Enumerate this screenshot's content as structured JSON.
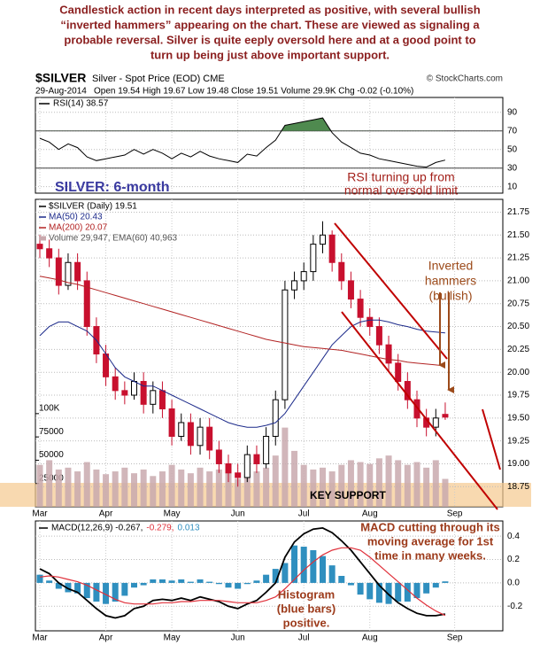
{
  "commentary": [
    "Candlestick action in recent days interpreted as positive, with several bullish",
    "“inverted hammers” appearing on the chart. These are viewed as signaling a",
    "probable reversal. Silver is quite eeply oversold here and at a good point to",
    "turn up being just above important support."
  ],
  "header": {
    "symbol": "$SILVER",
    "description": "Silver - Spot Price (EOD) CME",
    "source": "© StockCharts.com",
    "date": "29-Aug-2014",
    "quote": "Open 19.54 High 19.67 Low 19.48 Close 19.51 Volume 29.9K Chg -0.02 (-0.10%)"
  },
  "chart_data": [
    {
      "type": "line",
      "series": [
        {
          "name": "RSI(14) 38.57",
          "color": "#000000",
          "values": [
            62,
            58,
            50,
            56,
            52,
            42,
            38,
            40,
            42,
            44,
            50,
            45,
            50,
            46,
            40,
            46,
            42,
            48,
            43,
            40,
            38,
            36,
            45,
            43,
            52,
            60,
            76,
            78,
            80,
            82,
            84,
            68,
            58,
            52,
            46,
            44,
            40,
            38,
            36,
            34,
            32,
            31,
            36,
            38.57,
            null
          ]
        }
      ],
      "ylim": [
        3,
        106
      ],
      "yticks": [
        90,
        70,
        50,
        30,
        10
      ],
      "bands": {
        "upper": 70,
        "lower": 30,
        "fill": "#4f8a4f"
      },
      "annotations": [
        {
          "text": [
            "RSI turning up from",
            "normal oversold limit"
          ],
          "color": "#a3201a"
        }
      ]
    },
    {
      "type": "candlestick",
      "title": "SILVER: 6-month",
      "name": "$SILVER (Daily) 19.51",
      "categories": [
        "Mar",
        null,
        null,
        null,
        null,
        null,
        null,
        "Apr",
        null,
        null,
        null,
        null,
        null,
        null,
        "May",
        null,
        null,
        null,
        null,
        null,
        null,
        "Jun",
        null,
        null,
        null,
        null,
        null,
        null,
        "Jul",
        null,
        null,
        null,
        null,
        null,
        null,
        "Aug",
        null,
        null,
        null,
        null,
        null,
        null,
        null,
        null,
        "Sep"
      ],
      "open": [
        21.4,
        21.35,
        21.25,
        20.95,
        21.2,
        21.0,
        20.5,
        20.2,
        19.95,
        19.8,
        19.75,
        19.9,
        19.65,
        19.8,
        19.6,
        19.3,
        19.45,
        19.2,
        19.4,
        19.15,
        19.0,
        18.9,
        18.85,
        19.1,
        19.0,
        19.3,
        19.7,
        20.9,
        21.0,
        21.1,
        21.4,
        21.5,
        21.2,
        21.0,
        20.8,
        20.6,
        20.5,
        20.3,
        20.1,
        19.9,
        19.7,
        19.5,
        19.4,
        19.54,
        null
      ],
      "high": [
        21.5,
        21.45,
        21.35,
        21.3,
        21.3,
        21.1,
        20.6,
        20.3,
        20.05,
        19.9,
        20.0,
        20.0,
        19.9,
        19.9,
        19.7,
        19.55,
        19.55,
        19.5,
        19.5,
        19.25,
        19.1,
        19.0,
        19.2,
        19.2,
        19.4,
        19.8,
        21.0,
        21.1,
        21.2,
        21.5,
        21.65,
        21.55,
        21.3,
        21.1,
        20.9,
        20.7,
        20.6,
        20.4,
        20.2,
        20.0,
        19.8,
        19.6,
        19.6,
        19.67,
        null
      ],
      "low": [
        21.25,
        21.15,
        20.85,
        20.9,
        20.9,
        20.4,
        20.1,
        19.85,
        19.7,
        19.65,
        19.7,
        19.55,
        19.55,
        19.5,
        19.2,
        19.25,
        19.1,
        19.1,
        19.05,
        18.9,
        18.8,
        18.75,
        18.8,
        18.9,
        18.95,
        19.2,
        19.6,
        20.8,
        20.9,
        21.0,
        21.3,
        21.1,
        20.9,
        20.7,
        20.5,
        20.4,
        20.2,
        20.0,
        19.8,
        19.6,
        19.4,
        19.3,
        19.3,
        19.48,
        null
      ],
      "close": [
        21.35,
        21.25,
        20.95,
        21.2,
        21.0,
        20.5,
        20.2,
        19.95,
        19.8,
        19.75,
        19.9,
        19.65,
        19.8,
        19.6,
        19.3,
        19.45,
        19.2,
        19.4,
        19.15,
        19.0,
        18.9,
        18.85,
        19.1,
        19.0,
        19.3,
        19.7,
        20.9,
        21.0,
        21.1,
        21.4,
        21.5,
        21.2,
        21.0,
        20.8,
        20.6,
        20.5,
        20.3,
        20.1,
        19.9,
        19.7,
        19.5,
        19.4,
        19.5,
        19.51,
        null
      ],
      "up_color": "#000000",
      "down_color": "#c8102e",
      "series": [
        {
          "name": "MA(50) 20.43",
          "color": "#1c2a8a",
          "values": [
            20.4,
            20.5,
            20.55,
            20.55,
            20.5,
            20.45,
            20.35,
            20.2,
            20.05,
            19.95,
            19.9,
            19.85,
            19.85,
            19.8,
            19.75,
            19.7,
            19.65,
            19.6,
            19.55,
            19.5,
            19.45,
            19.42,
            19.4,
            19.4,
            19.42,
            19.45,
            19.55,
            19.7,
            19.85,
            20.0,
            20.15,
            20.3,
            20.4,
            20.5,
            20.55,
            20.57,
            20.57,
            20.55,
            20.52,
            20.5,
            20.47,
            20.45,
            20.44,
            20.43,
            null
          ]
        },
        {
          "name": "MA(200) 20.07",
          "color": "#b22222",
          "values": [
            21.05,
            21.03,
            21.01,
            20.98,
            20.96,
            20.93,
            20.9,
            20.87,
            20.84,
            20.81,
            20.78,
            20.75,
            20.72,
            20.69,
            20.66,
            20.63,
            20.6,
            20.57,
            20.54,
            20.51,
            20.48,
            20.45,
            20.42,
            20.39,
            20.36,
            20.34,
            20.32,
            20.3,
            20.28,
            20.27,
            20.26,
            20.25,
            20.24,
            20.22,
            20.2,
            20.18,
            20.16,
            20.14,
            20.13,
            20.11,
            20.1,
            20.09,
            20.08,
            20.07,
            null
          ]
        },
        {
          "name": "Volume 29,947, EMA(60) 40,963",
          "color": "#c9a9ae",
          "axis": "y2",
          "values": [
            45000,
            50000,
            40000,
            42000,
            38000,
            48000,
            40000,
            35000,
            38000,
            42000,
            36000,
            40000,
            33000,
            38000,
            45000,
            40000,
            36000,
            42000,
            38000,
            40000,
            44000,
            30000,
            35000,
            38000,
            42000,
            55000,
            85000,
            60000,
            45000,
            40000,
            42000,
            38000,
            45000,
            50000,
            48000,
            46000,
            52000,
            55000,
            50000,
            45000,
            48000,
            42000,
            50000,
            29947,
            null
          ]
        }
      ],
      "ylim": [
        18.53,
        21.89
      ],
      "yticks": [
        21.75,
        {
          "value": 21.5,
          "label": "21.50"
        },
        21.25,
        {
          "value": 21.0,
          "label": "21.00"
        },
        20.75,
        {
          "value": 20.5,
          "label": "20.50"
        },
        20.25,
        {
          "value": 20.0,
          "label": "20.00"
        },
        19.75,
        {
          "value": 19.5,
          "label": "19.50"
        },
        19.25,
        {
          "value": 19.0,
          "label": "19.00"
        },
        18.75
      ],
      "y2lim": [
        0,
        330000
      ],
      "y2ticks": [
        25000,
        50000,
        75000,
        {
          "value": 100000,
          "label": "100K"
        }
      ],
      "annotations": [
        {
          "text": [
            "Inverted",
            "hammers",
            "(bullish)"
          ],
          "color": "#9c4a1a"
        },
        {
          "text": [
            "KEY SUPPORT"
          ],
          "color": "#000000"
        }
      ]
    },
    {
      "type": "macd",
      "series": [
        {
          "name": "MACD(12,26,9) -0.267,",
          "color": "#000000",
          "values": [
            0.12,
            0.08,
            0.0,
            -0.05,
            -0.08,
            -0.15,
            -0.22,
            -0.28,
            -0.3,
            -0.28,
            -0.22,
            -0.2,
            -0.15,
            -0.14,
            -0.15,
            -0.13,
            -0.15,
            -0.12,
            -0.14,
            -0.16,
            -0.2,
            -0.22,
            -0.18,
            -0.15,
            -0.08,
            0.0,
            0.22,
            0.35,
            0.42,
            0.46,
            0.47,
            0.43,
            0.36,
            0.28,
            0.18,
            0.08,
            -0.02,
            -0.1,
            -0.17,
            -0.22,
            -0.26,
            -0.28,
            -0.28,
            -0.267,
            null
          ]
        },
        {
          "name": "-0.279,",
          "color": "#e0303a",
          "values": [
            0.05,
            0.06,
            0.05,
            0.03,
            0.01,
            -0.02,
            -0.06,
            -0.1,
            -0.14,
            -0.17,
            -0.18,
            -0.18,
            -0.18,
            -0.17,
            -0.17,
            -0.16,
            -0.16,
            -0.15,
            -0.15,
            -0.15,
            -0.16,
            -0.17,
            -0.17,
            -0.17,
            -0.15,
            -0.12,
            -0.05,
            0.03,
            0.11,
            0.18,
            0.24,
            0.28,
            0.3,
            0.3,
            0.28,
            0.22,
            0.15,
            0.08,
            0.01,
            -0.06,
            -0.13,
            -0.19,
            -0.24,
            -0.279,
            null
          ]
        },
        {
          "name": "0.013",
          "color": "#2f8fbf",
          "kind": "histogram",
          "values": [
            0.07,
            0.02,
            -0.05,
            -0.08,
            -0.09,
            -0.13,
            -0.16,
            -0.18,
            -0.16,
            -0.11,
            -0.04,
            -0.02,
            0.03,
            0.03,
            0.02,
            0.03,
            0.01,
            0.03,
            0.01,
            -0.01,
            -0.04,
            -0.05,
            -0.01,
            0.02,
            0.07,
            0.12,
            0.17,
            0.32,
            0.31,
            0.28,
            0.23,
            0.15,
            0.06,
            -0.02,
            -0.1,
            -0.14,
            -0.17,
            -0.18,
            -0.16,
            -0.16,
            -0.13,
            -0.09,
            -0.04,
            0.013,
            null
          ]
        }
      ],
      "ylim": [
        -0.41,
        0.53
      ],
      "yticks": [
        0.4,
        0.2,
        {
          "value": 0,
          "label": "0.0"
        },
        -0.2
      ],
      "annotations": [
        {
          "text": [
            "MACD cutting through its",
            "moving average for 1st",
            "time in many weeks."
          ],
          "color": "#9c3a1a"
        },
        {
          "text": [
            "Histogram",
            "(blue bars)",
            "positive."
          ],
          "color": "#9c3a1a"
        }
      ]
    }
  ]
}
